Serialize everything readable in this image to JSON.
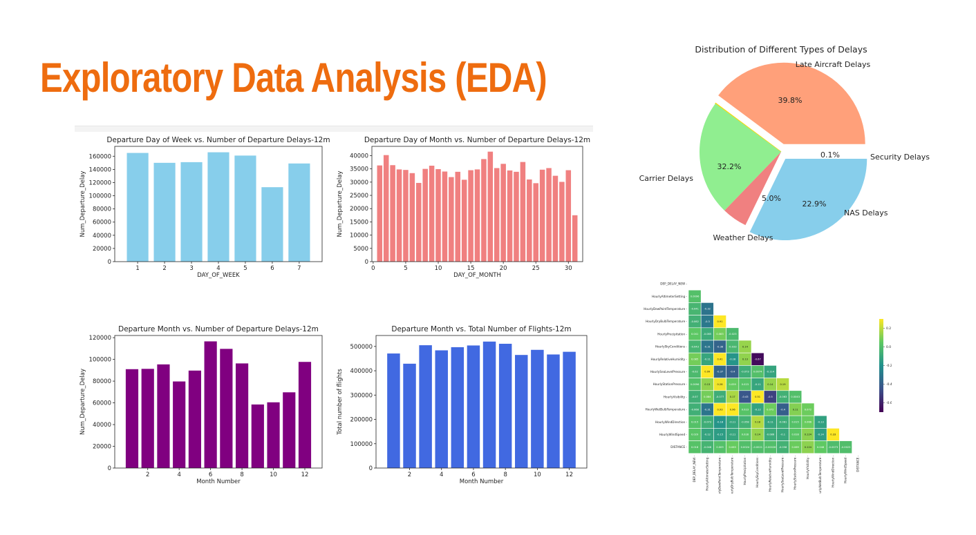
{
  "slide": {
    "title": "Exploratory Data Analysis (EDA)"
  },
  "chart_data": [
    {
      "type": "bar",
      "title": "Departure Day of Week vs. Number of Departure Delays-12m",
      "xlabel": "DAY_OF_WEEK",
      "ylabel": "Num_Departure_Delay",
      "categories": [
        1,
        2,
        3,
        4,
        5,
        6,
        7
      ],
      "values": [
        165000,
        150000,
        151000,
        166000,
        161000,
        113000,
        149000
      ],
      "ylim": [
        0,
        175000
      ],
      "yticks": [
        0,
        20000,
        40000,
        60000,
        80000,
        100000,
        120000,
        140000,
        160000
      ],
      "xticks": [
        1,
        2,
        3,
        4,
        5,
        6,
        7
      ],
      "color": "#87ceeb"
    },
    {
      "type": "bar",
      "title": "Departure Day of Month vs. Number of Departure Delays-12m",
      "xlabel": "DAY_OF_MONTH",
      "ylabel": "Num_Departure_Delay",
      "categories": [
        1,
        2,
        3,
        4,
        5,
        6,
        7,
        8,
        9,
        10,
        11,
        12,
        13,
        14,
        15,
        16,
        17,
        18,
        19,
        20,
        21,
        22,
        23,
        24,
        25,
        26,
        27,
        28,
        29,
        30,
        31
      ],
      "values": [
        36300,
        40200,
        36400,
        34800,
        34600,
        33400,
        29700,
        35000,
        36200,
        34900,
        34000,
        31900,
        33900,
        30900,
        34500,
        34800,
        38700,
        41500,
        35300,
        36900,
        34400,
        33900,
        37600,
        31000,
        29600,
        34700,
        35300,
        32400,
        30100,
        34500,
        17500
      ],
      "ylim": [
        0,
        43500
      ],
      "yticks": [
        0,
        5000,
        10000,
        15000,
        20000,
        25000,
        30000,
        35000,
        40000
      ],
      "xticks": [
        0,
        5,
        10,
        15,
        20,
        25,
        30
      ],
      "color": "#f08080"
    },
    {
      "type": "bar",
      "title": "Departure Month vs. Number of Departure Delays-12m",
      "xlabel": "Month Number",
      "ylabel": "Num_Departure_Delay",
      "categories": [
        1,
        2,
        3,
        4,
        5,
        6,
        7,
        8,
        9,
        10,
        11,
        12
      ],
      "values": [
        91000,
        91300,
        95400,
        79700,
        89700,
        116600,
        109700,
        96300,
        58500,
        60500,
        69700,
        97700
      ],
      "ylim": [
        0,
        122000
      ],
      "yticks": [
        0,
        20000,
        40000,
        60000,
        80000,
        100000,
        120000
      ],
      "xticks": [
        2,
        4,
        6,
        8,
        10,
        12
      ],
      "color": "#800080"
    },
    {
      "type": "bar",
      "title": "Departure Month vs. Total Number of Flights-12m",
      "xlabel": "Month Number",
      "ylabel": "Total number of flights",
      "categories": [
        1,
        2,
        3,
        4,
        5,
        6,
        7,
        8,
        9,
        10,
        11,
        12
      ],
      "values": [
        471000,
        429000,
        505000,
        484000,
        497000,
        504000,
        520000,
        511000,
        465000,
        486000,
        467000,
        478000
      ],
      "ylim": [
        0,
        545000
      ],
      "yticks": [
        0,
        100000,
        200000,
        300000,
        400000,
        500000
      ],
      "xticks": [
        2,
        4,
        6,
        8,
        10,
        12
      ],
      "color": "#4169e1"
    },
    {
      "type": "pie",
      "title": "Distribution of Different Types of Delays",
      "labels": [
        "Late Aircraft Delays",
        "Security Delays",
        "NAS Delays",
        "Weather Delays",
        "Carrier Delays"
      ],
      "values": [
        39.8,
        0.1,
        22.9,
        5.0,
        32.2
      ],
      "pct_labels": [
        "39.8%",
        "0.1%",
        "22.9%",
        "5.0%",
        "32.2%"
      ],
      "colors": [
        "#ffa07a",
        "#ffd700",
        "#90ee90",
        "#f08080",
        "#87ceeb"
      ],
      "explode": [
        0.1,
        0,
        0,
        0,
        0.1
      ]
    },
    {
      "type": "heatmap",
      "colormap": "viridis",
      "colorbar_ticks": [
        0.2,
        0.0,
        -0.2,
        -0.4,
        -0.6
      ],
      "colorbar_range": [
        -0.7,
        0.3
      ],
      "row_labels": [
        "DEP_DELAY_NEW",
        "HourlyAltimeterSetting",
        "HourlyDewPointTemperature",
        "HourlyDryBulbTemperature",
        "HourlyPrecipitation",
        "HourlySkyConditions",
        "HourlyRelativeHumidity",
        "HourlySeaLevelPressure",
        "HourlyStationPressure",
        "HourlyVisibility",
        "HourlyWetBulbTemperature",
        "HourlyWindDirection",
        "HourlyWindSpeed",
        "DISTANCE"
      ],
      "col_labels": [
        "DEP_DELAY_NEW",
        "HourlyAltimeterSetting",
        "HourlyDewPointTemperature",
        "HourlyDryBulbTemperature",
        "HourlyPrecipitation",
        "HourlySkyConditions",
        "HourlyRelativeHumidity",
        "HourlySeaLevelPressure",
        "HourlyStationPressure",
        "HourlyVisibility",
        "HourlyWetBulbTemperature",
        "HourlyWindDirection",
        "HourlyWindSpeed",
        "DISTANCE"
      ],
      "values": [
        [],
        [
          0.0096
        ],
        [
          -0.041,
          -0.32
        ],
        [
          -0.062,
          -0.3,
          0.91
        ],
        [
          0.041,
          -0.085,
          0.083,
          -0.023
        ],
        [
          -0.043,
          -0.31,
          -0.38,
          -0.033,
          0.14
        ],
        [
          0.085,
          -0.11,
          0.41,
          -0.18,
          0.13,
          -0.67
        ],
        [
          -0.02,
          0.99,
          -0.37,
          -0.4,
          -0.073,
          0.0074,
          -0.114
        ],
        [
          0.0096,
          0.13,
          0.28,
          0.059,
          0.023,
          -0.11,
          0.14,
          0.19
        ],
        [
          -0.07,
          0.084,
          -0.077,
          0.17,
          -0.43,
          0.51,
          -0.5,
          -0.063,
          0.0043
        ],
        [
          -0.068,
          -0.31,
          0.93,
          0.96,
          0.023,
          -0.12,
          0.072,
          -0.4,
          0.11,
          0.072
        ],
        [
          0.015,
          -0.073,
          -0.18,
          -0.11,
          -0.058,
          0.18,
          -0.11,
          -0.081,
          0.015,
          0.066,
          -0.13
        ],
        [
          0.029,
          -0.12,
          -0.15,
          -0.11,
          0.028,
          0.14,
          -0.086,
          -0.1,
          0.028,
          0.124,
          -0.14,
          0.33
        ],
        [
          0.018,
          -0.048,
          0.009,
          0.063,
          0.0024,
          -0.0021,
          -0.00026,
          -0.058,
          0.069,
          0.124,
          0.048,
          -0.0073,
          -0.0023
        ]
      ]
    }
  ]
}
